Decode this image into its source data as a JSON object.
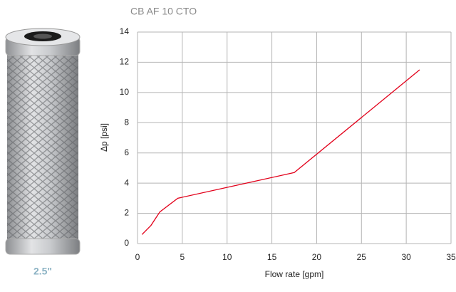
{
  "chart_data": {
    "type": "line",
    "title": "CB AF 10 CTO",
    "x_label": "Flow rate [gpm]",
    "y_label": "Δp [psi]",
    "series": [
      {
        "name": "CB AF 10 CTO",
        "color": "#e2001a",
        "x": [
          0.5,
          1.5,
          2.5,
          4.5,
          17.5,
          31.5
        ],
        "values": [
          0.6,
          1.2,
          2.1,
          3.0,
          4.7,
          11.5
        ]
      }
    ],
    "xlim": [
      0,
      35
    ],
    "xticks": [
      0,
      5,
      10,
      15,
      20,
      25,
      30,
      35
    ],
    "ylim": [
      0,
      14
    ],
    "yticks": [
      0,
      2,
      4,
      6,
      8,
      10,
      12,
      14
    ],
    "grid": true
  },
  "image_caption": "2.5\""
}
